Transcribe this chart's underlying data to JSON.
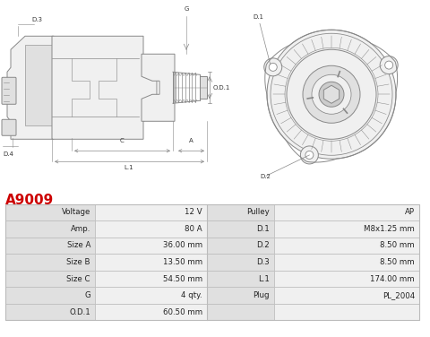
{
  "title": "A9009",
  "title_color": "#cc0000",
  "background_color": "#ffffff",
  "table_border_color": "#bbbbbb",
  "col_label_bg": "#e0e0e0",
  "col_value_bg": "#f0f0f0",
  "rows": [
    [
      "Voltage",
      "12 V",
      "Pulley",
      "AP"
    ],
    [
      "Amp.",
      "80 A",
      "D.1",
      "M8x1.25 mm"
    ],
    [
      "Size A",
      "36.00 mm",
      "D.2",
      "8.50 mm"
    ],
    [
      "Size B",
      "13.50 mm",
      "D.3",
      "8.50 mm"
    ],
    [
      "Size C",
      "54.50 mm",
      "L.1",
      "174.00 mm"
    ],
    [
      "G",
      "4 qty.",
      "Plug",
      "PL_2004"
    ],
    [
      "O.D.1",
      "60.50 mm",
      "",
      ""
    ]
  ],
  "line_color": "#888888",
  "line_width": 0.7,
  "fill_light": "#f0f0f0",
  "fill_mid": "#e0e0e0",
  "fill_dark": "#cccccc"
}
